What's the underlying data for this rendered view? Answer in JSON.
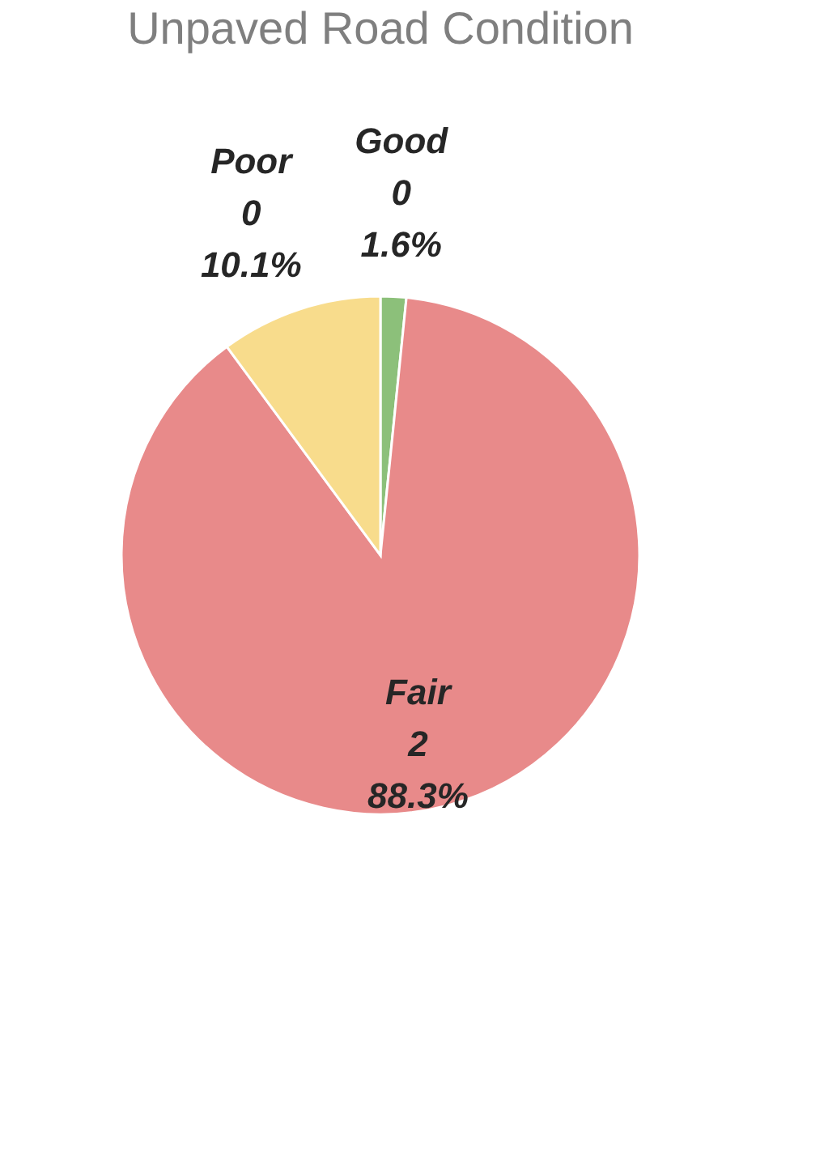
{
  "chart_data": {
    "type": "pie",
    "title": "Unpaved Road Condition",
    "categories": [
      "Good",
      "Fair",
      "Poor"
    ],
    "values": [
      1.6,
      88.3,
      10.1
    ],
    "colors": [
      "#8cc07a",
      "#e88a8a",
      "#f8dc8c"
    ],
    "value_labels": [
      "0\n1.6%",
      "2\n88.3%",
      "0\n10.1%"
    ],
    "legend": false
  }
}
